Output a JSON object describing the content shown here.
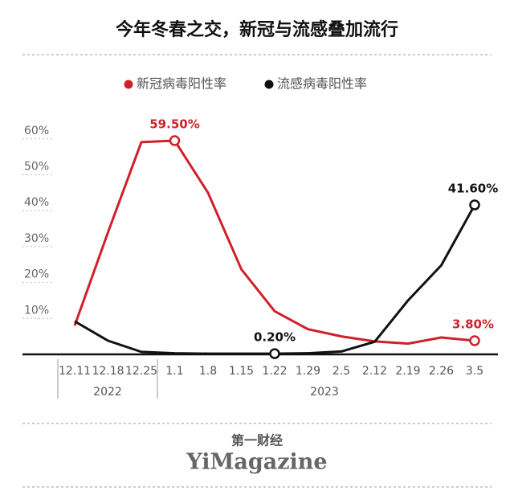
{
  "chart_data": {
    "type": "line",
    "title": "今年冬春之交，新冠与流感叠加流行",
    "categories": [
      "12.11",
      "12.18",
      "12.25",
      "1.1",
      "1.8",
      "1.15",
      "1.22",
      "1.29",
      "2.5",
      "2.12",
      "2.19",
      "2.26",
      "3.5"
    ],
    "groups": [
      "2022",
      "2023"
    ],
    "series": [
      {
        "name": "新冠病毒阳性率",
        "color": "#d0202a",
        "values": [
          8,
          34,
          59.1,
          59.5,
          45,
          23.7,
          12,
          7,
          5,
          3.6,
          3,
          4.7,
          3.8
        ],
        "value_labels": [
          null,
          null,
          null,
          "59.50%",
          null,
          null,
          null,
          null,
          null,
          null,
          null,
          null,
          "3.80%"
        ]
      },
      {
        "name": "流感病毒阳性率",
        "color": "#111111",
        "values": [
          9.2,
          3.8,
          0.7,
          0.3,
          0.2,
          0.2,
          0.2,
          0.3,
          0.8,
          3.5,
          15,
          24.8,
          41.6
        ],
        "value_labels": [
          null,
          null,
          null,
          null,
          null,
          null,
          "0.20%",
          null,
          null,
          null,
          null,
          null,
          "41.60%"
        ]
      }
    ],
    "ylim": [
      0,
      65
    ],
    "yticks": [
      {
        "value": 10,
        "label": "10%"
      },
      {
        "value": 20,
        "label": "20%"
      },
      {
        "value": 30,
        "label": "30%"
      },
      {
        "value": 40,
        "label": "40%"
      },
      {
        "value": 50,
        "label": "50%"
      },
      {
        "value": 60,
        "label": "60%"
      }
    ],
    "grid": true,
    "legend": "top"
  },
  "footer": {
    "brand_cn": "第一财经",
    "brand_en": "YiMagazine"
  }
}
